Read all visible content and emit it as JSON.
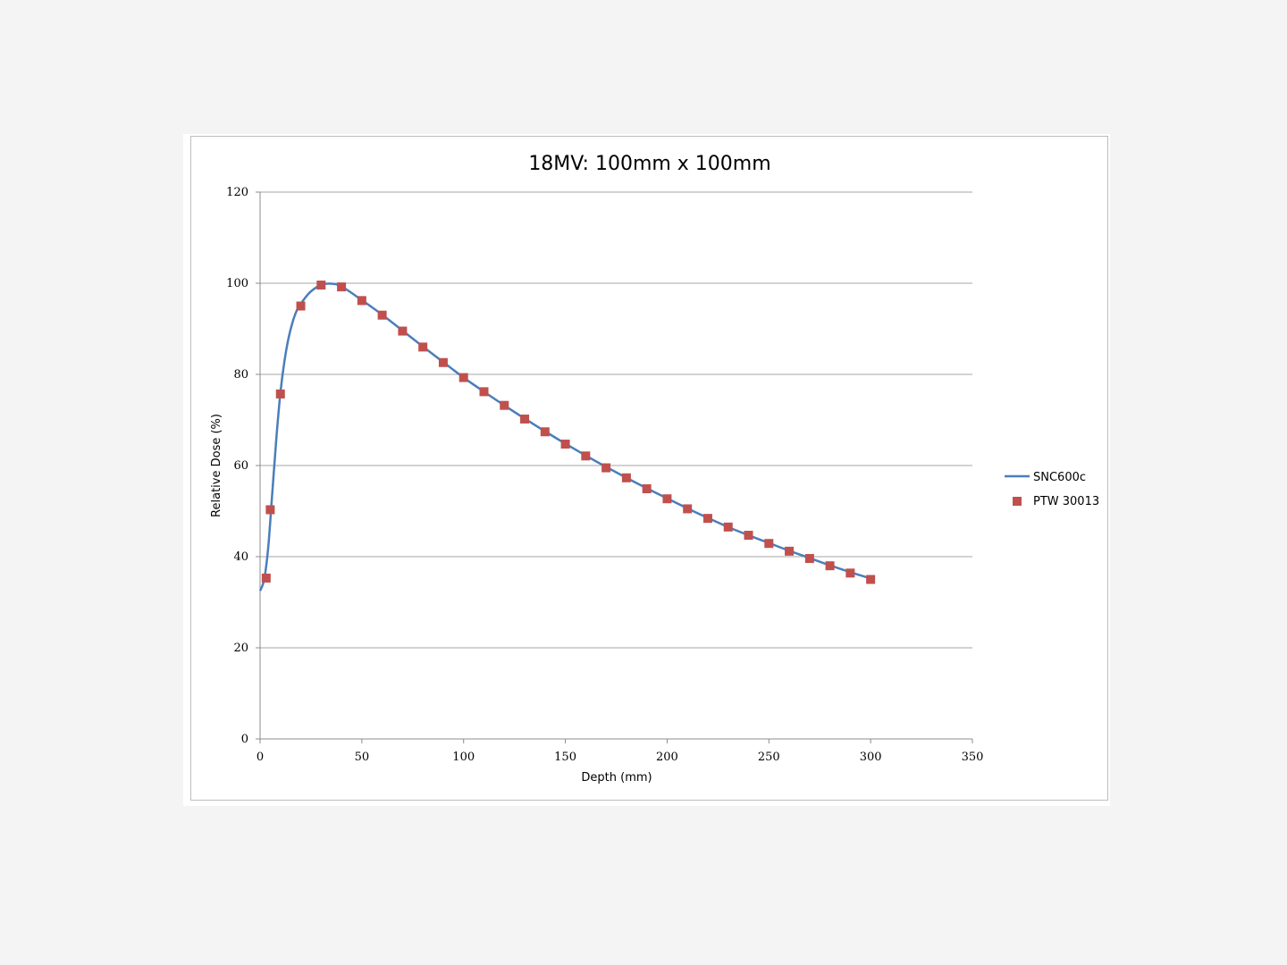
{
  "chart_data": {
    "type": "line",
    "title": "18MV: 100mm x 100mm",
    "xlabel": "Depth (mm)",
    "ylabel": "Relative Dose (%)",
    "xlim": [
      0,
      350
    ],
    "ylim": [
      0,
      120
    ],
    "xticks": [
      0,
      50,
      100,
      150,
      200,
      250,
      300,
      350
    ],
    "yticks": [
      0,
      20,
      40,
      60,
      80,
      100,
      120
    ],
    "grid": "horizontal",
    "legend_position": "right",
    "series": [
      {
        "name": "SNC600c",
        "type": "line",
        "color": "#4a7ebb",
        "x": [
          0,
          2,
          4,
          6,
          8,
          10,
          12,
          14,
          16,
          18,
          20,
          24,
          28,
          30,
          35,
          40,
          50,
          60,
          70,
          80,
          90,
          100,
          110,
          120,
          130,
          140,
          150,
          160,
          170,
          180,
          190,
          200,
          210,
          220,
          230,
          240,
          250,
          260,
          270,
          280,
          290,
          300
        ],
        "y": [
          32.5,
          35,
          42,
          54,
          66,
          76,
          83,
          88,
          91.5,
          94,
          95.5,
          97.8,
          99.2,
          99.7,
          99.9,
          99.3,
          96.3,
          93.1,
          89.6,
          86.1,
          82.7,
          79.3,
          76.2,
          73.2,
          70.3,
          67.5,
          64.8,
          62.2,
          59.7,
          57.3,
          55.0,
          52.8,
          50.6,
          48.5,
          46.5,
          44.7,
          43.0,
          41.3,
          39.7,
          38.1,
          36.6,
          35.2
        ]
      },
      {
        "name": "PTW 30013",
        "type": "scatter",
        "color": "#c0504d",
        "x": [
          3,
          5,
          10,
          20,
          30,
          40,
          50,
          60,
          70,
          80,
          90,
          100,
          110,
          120,
          130,
          140,
          150,
          160,
          170,
          180,
          190,
          200,
          210,
          220,
          230,
          240,
          250,
          260,
          270,
          280,
          290,
          300
        ],
        "y": [
          35.3,
          50.3,
          75.7,
          95.0,
          99.6,
          99.2,
          96.2,
          93.0,
          89.5,
          86.0,
          82.6,
          79.3,
          76.2,
          73.2,
          70.2,
          67.4,
          64.7,
          62.1,
          59.5,
          57.3,
          54.9,
          52.7,
          50.5,
          48.4,
          46.5,
          44.7,
          42.9,
          41.2,
          39.6,
          38.0,
          36.4,
          35.0
        ]
      }
    ]
  }
}
